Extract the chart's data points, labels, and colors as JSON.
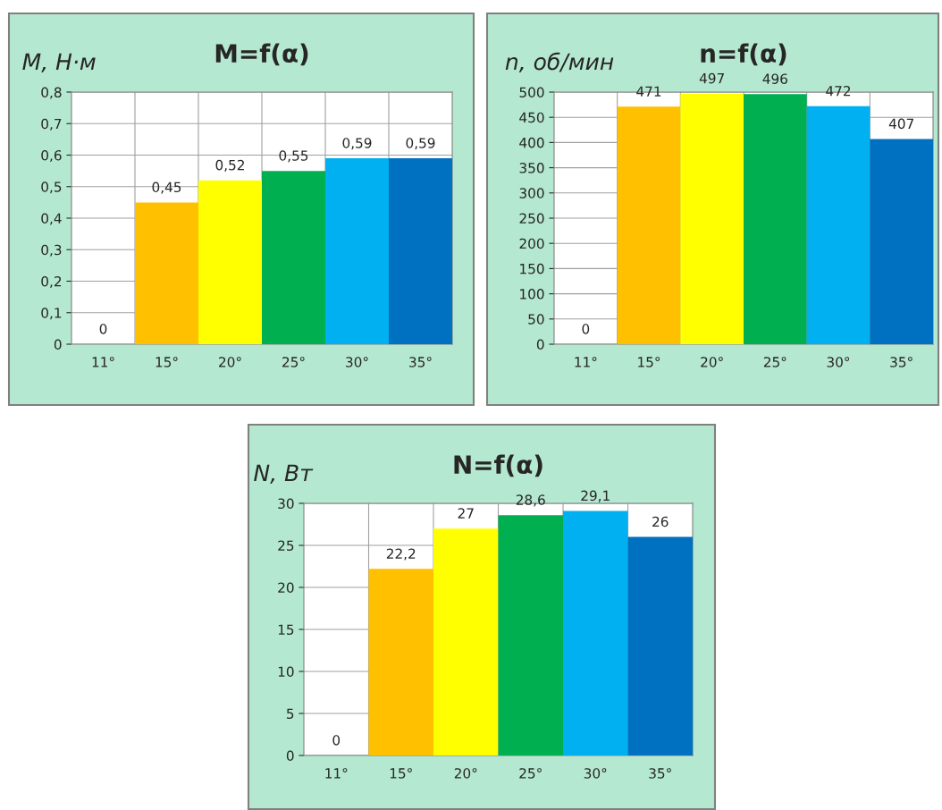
{
  "chart_data": [
    {
      "type": "bar",
      "title": "M=f(α)",
      "ylabel": "M, Н·м",
      "categories": [
        "11°",
        "15°",
        "20°",
        "25°",
        "30°",
        "35°"
      ],
      "values": [
        0,
        0.45,
        0.52,
        0.55,
        0.59,
        0.59
      ],
      "colors": [
        "#ffffff",
        "#ffc000",
        "#ffff00",
        "#00b050",
        "#00b0f0",
        "#0070c0"
      ],
      "value_labels": [
        "0",
        "0,45",
        "0,52",
        "0,55",
        "0,59",
        "0,59"
      ],
      "ylim": [
        0,
        0.8
      ],
      "yticks": [
        0,
        {
          "value": 0.1,
          "label": "0,1"
        },
        {
          "value": 0.2,
          "label": "0,2"
        },
        {
          "value": 0.3,
          "label": "0,3"
        },
        {
          "value": 0.4,
          "label": "0,4"
        },
        {
          "value": 0.5,
          "label": "0,5"
        },
        {
          "value": 0.6,
          "label": "0,6"
        },
        {
          "value": 0.7,
          "label": "0,7"
        },
        {
          "value": 0.8,
          "label": "0,8"
        }
      ],
      "grid": true
    },
    {
      "type": "bar",
      "title": "n=f(α)",
      "ylabel": "n, об/мин",
      "categories": [
        "11°",
        "15°",
        "20°",
        "25°",
        "30°",
        "35°"
      ],
      "values": [
        0,
        471,
        497,
        496,
        472,
        407
      ],
      "colors": [
        "#ffffff",
        "#ffc000",
        "#ffff00",
        "#00b050",
        "#00b0f0",
        "#0070c0"
      ],
      "data_labels": true,
      "ylim": [
        0,
        500
      ],
      "yticks": [
        0,
        50,
        100,
        150,
        200,
        250,
        300,
        350,
        400,
        450,
        500
      ],
      "grid": true
    },
    {
      "type": "bar",
      "title": "N=f(α)",
      "ylabel": "N, Вт",
      "categories": [
        "11°",
        "15°",
        "20°",
        "25°",
        "30°",
        "35°"
      ],
      "values": [
        0,
        22.2,
        27,
        28.6,
        29.1,
        26
      ],
      "colors": [
        "#ffffff",
        "#ffc000",
        "#ffff00",
        "#00b050",
        "#00b0f0",
        "#0070c0"
      ],
      "value_labels": [
        "0",
        "22,2",
        "27",
        "28,6",
        "29,1",
        "26"
      ],
      "ylim": [
        0,
        30
      ],
      "yticks": [
        0,
        5,
        10,
        15,
        20,
        25,
        30
      ],
      "grid": true
    }
  ]
}
